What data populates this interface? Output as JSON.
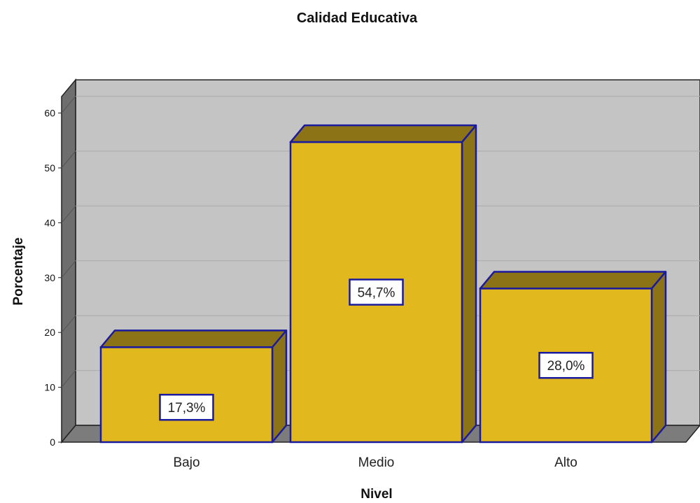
{
  "chart_data": {
    "type": "bar",
    "title": "Calidad Educativa",
    "xlabel": "Nivel",
    "ylabel": "Porcentaje",
    "categories": [
      "Bajo",
      "Medio",
      "Alto"
    ],
    "values": [
      17.3,
      54.7,
      28.0
    ],
    "data_labels": [
      "17,3%",
      "54,7%",
      "28,0%"
    ],
    "ylim": [
      0,
      63
    ],
    "yticks": [
      0,
      10,
      20,
      30,
      40,
      50,
      60
    ],
    "grid": true,
    "legend": "none",
    "style": "3d",
    "colors": {
      "bar_front": "#e1b81e",
      "bar_top": "#8b7316",
      "bar_side": "#8b7316",
      "bar_outline": "#1a1a9e",
      "wall_back": "#c4c4c4",
      "wall_side": "#6e6e6e",
      "floor": "#7c7c7c",
      "gridline": "#aaaaaa",
      "label_border": "#1a1a9e"
    }
  }
}
